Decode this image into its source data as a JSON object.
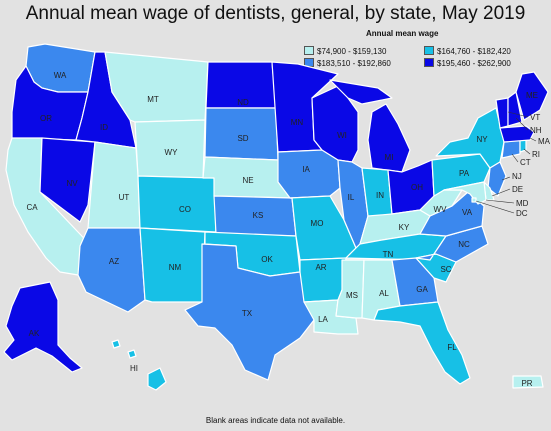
{
  "title": "Annual mean wage of dentists, general, by state, May 2019",
  "legend": {
    "title": "Annual mean wage",
    "items": [
      {
        "range": "$74,900 - $159,130",
        "color": "#b7f0ef"
      },
      {
        "range": "$164,760 - $182,420",
        "color": "#17c0e6"
      },
      {
        "range": "$183,510 - $192,860",
        "color": "#3b88ee"
      },
      {
        "range": "$195,460 - $262,900",
        "color": "#0a08e6"
      }
    ]
  },
  "footnote": "Blank areas indicate data not available.",
  "states": [
    {
      "code": "WA",
      "label": "WA",
      "class": 2
    },
    {
      "code": "OR",
      "label": "OR",
      "class": 3
    },
    {
      "code": "CA",
      "label": "CA",
      "class": 0
    },
    {
      "code": "NV",
      "label": "NV",
      "class": 3
    },
    {
      "code": "ID",
      "label": "ID",
      "class": 3
    },
    {
      "code": "MT",
      "label": "MT",
      "class": 0
    },
    {
      "code": "WY",
      "label": "WY",
      "class": 0
    },
    {
      "code": "UT",
      "label": "UT",
      "class": 0
    },
    {
      "code": "AZ",
      "label": "AZ",
      "class": 2
    },
    {
      "code": "CO",
      "label": "CO",
      "class": 1
    },
    {
      "code": "NM",
      "label": "NM",
      "class": 1
    },
    {
      "code": "ND",
      "label": "ND",
      "class": 3
    },
    {
      "code": "SD",
      "label": "SD",
      "class": 2
    },
    {
      "code": "NE",
      "label": "NE",
      "class": 0
    },
    {
      "code": "KS",
      "label": "KS",
      "class": 2
    },
    {
      "code": "OK",
      "label": "OK",
      "class": 1
    },
    {
      "code": "TX",
      "label": "TX",
      "class": 2
    },
    {
      "code": "MN",
      "label": "MN",
      "class": 3
    },
    {
      "code": "IA",
      "label": "IA",
      "class": 2
    },
    {
      "code": "MO",
      "label": "MO",
      "class": 1
    },
    {
      "code": "AR",
      "label": "AR",
      "class": 1
    },
    {
      "code": "LA",
      "label": "LA",
      "class": 0
    },
    {
      "code": "WI",
      "label": "WI",
      "class": 3
    },
    {
      "code": "IL",
      "label": "IL",
      "class": 2
    },
    {
      "code": "MI",
      "label": "MI",
      "class": 3
    },
    {
      "code": "IN",
      "label": "IN",
      "class": 1
    },
    {
      "code": "OH",
      "label": "OH",
      "class": 3
    },
    {
      "code": "KY",
      "label": "KY",
      "class": 0
    },
    {
      "code": "TN",
      "label": "TN",
      "class": 1
    },
    {
      "code": "MS",
      "label": "MS",
      "class": 0
    },
    {
      "code": "AL",
      "label": "AL",
      "class": 0
    },
    {
      "code": "GA",
      "label": "GA",
      "class": 2
    },
    {
      "code": "FL",
      "label": "FL",
      "class": 1
    },
    {
      "code": "SC",
      "label": "SC",
      "class": 1
    },
    {
      "code": "NC",
      "label": "NC",
      "class": 2
    },
    {
      "code": "VA",
      "label": "VA",
      "class": 2
    },
    {
      "code": "WV",
      "label": "WV",
      "class": 0
    },
    {
      "code": "PA",
      "label": "PA",
      "class": 1
    },
    {
      "code": "NY",
      "label": "NY",
      "class": 1
    },
    {
      "code": "ME",
      "label": "ME",
      "class": 3
    },
    {
      "code": "VT",
      "label": "VT",
      "class": 3
    },
    {
      "code": "NH",
      "label": "NH",
      "class": 3
    },
    {
      "code": "MA",
      "label": "MA",
      "class": 3
    },
    {
      "code": "RI",
      "label": "RI",
      "class": 1
    },
    {
      "code": "CT",
      "label": "CT",
      "class": 2
    },
    {
      "code": "NJ",
      "label": "NJ",
      "class": 2
    },
    {
      "code": "DE",
      "label": "DE",
      "class": 0
    },
    {
      "code": "MD",
      "label": "MD",
      "class": 0
    },
    {
      "code": "DC",
      "label": "DC",
      "class": 0
    },
    {
      "code": "AK",
      "label": "AK",
      "class": 3
    },
    {
      "code": "HI",
      "label": "HI",
      "class": 1
    },
    {
      "code": "PR",
      "label": "PR",
      "class": 0
    }
  ]
}
